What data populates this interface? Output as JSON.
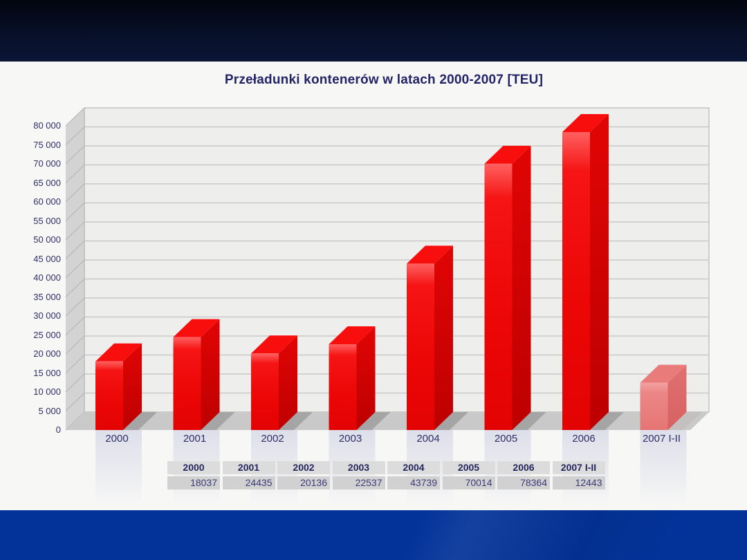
{
  "slide": {
    "top_banner": "",
    "bottom_banner": ""
  },
  "colors": {
    "top_band_dark": "#02050f",
    "top_band_light": "#0b1536",
    "bottom_band_blue": "#033399",
    "content_background": "#f7f7f6",
    "title_text": "#232368",
    "axis_text": "#2e2e68",
    "bar_red": "#ee0505",
    "bar_red_side": "#cc0000",
    "bar_faded_pink": "#e87e7e",
    "plot_wall": "#eeeeec",
    "plot_floor": "#c9c9c9",
    "table_header_bg": "#dcdcdc",
    "table_value_bg": "#d1d1d1"
  },
  "chart_data": {
    "type": "bar",
    "style": "3d-column",
    "title": "Przeładunki kontenerów w latach 2000-2007 [TEU]",
    "categories": [
      "2000",
      "2001",
      "2002",
      "2003",
      "2004",
      "2005",
      "2006",
      "2007 I-II"
    ],
    "values": [
      18037,
      24435,
      20136,
      22537,
      43739,
      70014,
      78364,
      12443
    ],
    "faded_bar_index": 7,
    "xlabel": "",
    "ylabel": "",
    "ylim": [
      0,
      80000
    ],
    "ytick_step": 5000,
    "yticks": [
      "0",
      "5 000",
      "10 000",
      "15 000",
      "20 000",
      "25 000",
      "30 000",
      "35 000",
      "40 000",
      "45 000",
      "50 000",
      "55 000",
      "60 000",
      "65 000",
      "70 000",
      "75 000",
      "80 000"
    ],
    "grid": "horizontal",
    "legend": "none",
    "table": {
      "headers": [
        "2000",
        "2001",
        "2002",
        "2003",
        "2004",
        "2005",
        "2006",
        "2007 I-II"
      ],
      "values": [
        "18037",
        "24435",
        "20136",
        "22537",
        "43739",
        "70014",
        "78364",
        "12443"
      ]
    }
  }
}
